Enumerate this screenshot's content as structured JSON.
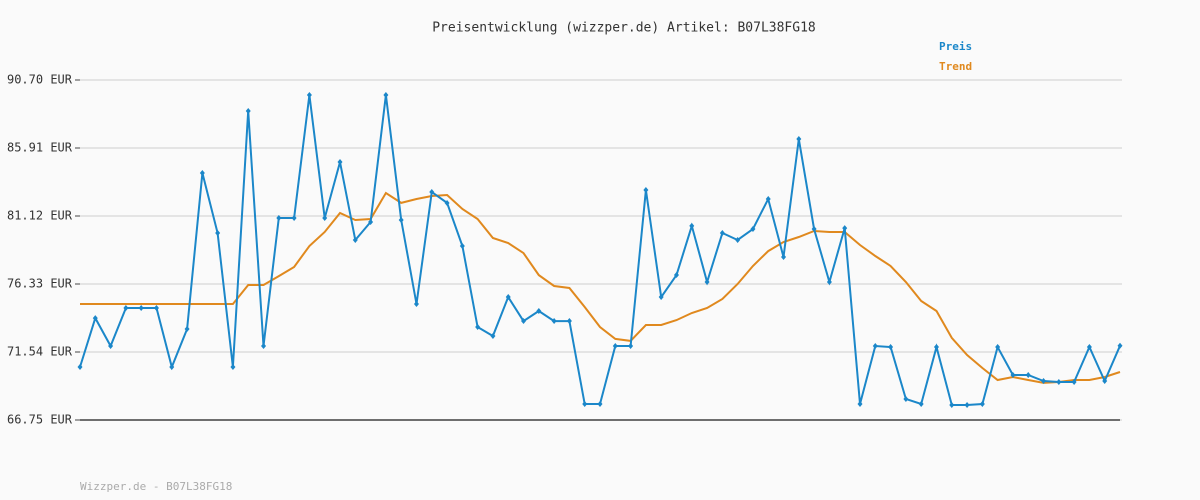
{
  "chart_data": {
    "type": "line",
    "title": "Preisentwicklung (wizzper.de) Artikel: B07L38FG18",
    "footer": "Wizzper.de - B07L38FG18",
    "ylim": [
      66.75,
      90.7
    ],
    "yticks": [
      {
        "value": 66.75,
        "label": "66.75 EUR"
      },
      {
        "value": 71.54,
        "label": "71.54 EUR"
      },
      {
        "value": 76.33,
        "label": "76.33 EUR"
      },
      {
        "value": 81.12,
        "label": "81.12 EUR"
      },
      {
        "value": 85.91,
        "label": "85.91 EUR"
      },
      {
        "value": 90.7,
        "label": "90.70 EUR"
      }
    ],
    "grid": true,
    "legend": "top-right",
    "series": [
      {
        "name": "Preis",
        "color": "#1b87c9",
        "markers": true,
        "values": [
          70.48,
          73.93,
          71.96,
          74.64,
          74.64,
          74.64,
          70.48,
          73.16,
          84.15,
          79.92,
          70.48,
          88.52,
          71.96,
          80.98,
          80.98,
          89.64,
          80.98,
          84.92,
          79.43,
          80.7,
          89.64,
          80.84,
          74.92,
          82.81,
          82.04,
          79.01,
          73.3,
          72.67,
          75.41,
          73.72,
          74.43,
          73.72,
          73.72,
          67.88,
          67.88,
          71.96,
          71.96,
          82.95,
          75.41,
          76.96,
          80.42,
          76.47,
          79.92,
          79.43,
          80.2,
          82.32,
          78.23,
          86.54,
          80.2,
          76.47,
          80.27,
          67.88,
          71.96,
          71.89,
          68.23,
          67.88,
          71.89,
          67.81,
          67.81,
          67.88,
          71.89,
          69.92,
          69.92,
          69.5,
          69.43,
          69.43,
          71.89,
          69.5,
          71.98
        ]
      },
      {
        "name": "Trend",
        "color": "#e0891e",
        "markers": false,
        "values": [
          74.92,
          74.92,
          74.92,
          74.92,
          74.92,
          74.92,
          74.92,
          74.92,
          74.92,
          74.92,
          74.92,
          76.26,
          76.26,
          76.89,
          77.53,
          79.01,
          79.99,
          81.33,
          80.84,
          80.91,
          82.74,
          82.04,
          82.32,
          82.53,
          82.6,
          81.61,
          80.91,
          79.57,
          79.22,
          78.51,
          76.96,
          76.19,
          76.05,
          74.71,
          73.3,
          72.46,
          72.32,
          73.44,
          73.44,
          73.79,
          74.29,
          74.64,
          75.27,
          76.33,
          77.6,
          78.65,
          79.29,
          79.64,
          80.06,
          79.99,
          79.99,
          79.08,
          78.3,
          77.6,
          76.47,
          75.13,
          74.43,
          72.53,
          71.33,
          70.41,
          69.57,
          69.78,
          69.57,
          69.36,
          69.43,
          69.57,
          69.57,
          69.78,
          70.13
        ]
      }
    ]
  }
}
